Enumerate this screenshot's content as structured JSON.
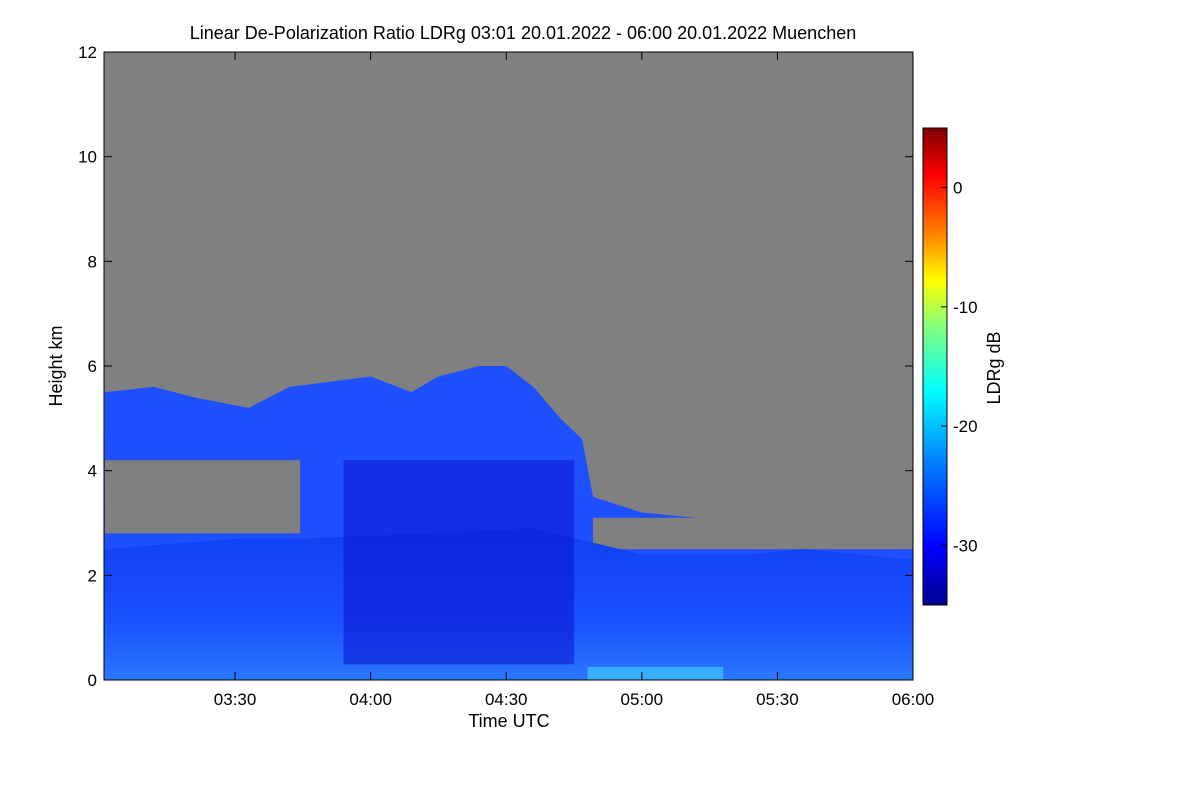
{
  "chart_data": {
    "type": "heatmap",
    "title": "Linear De-Polarization Ratio LDRg   03:01 20.01.2022 - 06:00 20.01.2022 Muenchen",
    "xlabel": "Time UTC",
    "ylabel": "Height km",
    "x_range_hours": [
      3.0167,
      6.0
    ],
    "ylim": [
      0,
      12
    ],
    "x_ticks": [
      {
        "label": "03:30",
        "value": 3.5
      },
      {
        "label": "04:00",
        "value": 4.0
      },
      {
        "label": "04:30",
        "value": 4.5
      },
      {
        "label": "05:00",
        "value": 5.0
      },
      {
        "label": "05:30",
        "value": 5.5
      },
      {
        "label": "06:00",
        "value": 6.0
      }
    ],
    "y_ticks": [
      {
        "label": "0",
        "value": 0
      },
      {
        "label": "2",
        "value": 2
      },
      {
        "label": "4",
        "value": 4
      },
      {
        "label": "6",
        "value": 6
      },
      {
        "label": "8",
        "value": 8
      },
      {
        "label": "10",
        "value": 10
      },
      {
        "label": "12",
        "value": 12
      }
    ],
    "colorbar": {
      "label": "LDRg dB",
      "range": [
        -35,
        5
      ],
      "ticks": [
        {
          "label": "0",
          "value": 0
        },
        {
          "label": "-10",
          "value": -10
        },
        {
          "label": "-20",
          "value": -20
        },
        {
          "label": "-30",
          "value": -30
        }
      ],
      "colormap": [
        "#00008f",
        "#0000ff",
        "#0080ff",
        "#00ffff",
        "#80ff80",
        "#ffff00",
        "#ff8000",
        "#ff0000",
        "#800000"
      ]
    },
    "no_signal_color": "#808080",
    "signal_color_low": "#0a14d2",
    "signal_color_mid": "#1e50ff",
    "cloud_top_km": [
      {
        "t": 3.02,
        "h": 5.5
      },
      {
        "t": 3.2,
        "h": 5.6
      },
      {
        "t": 3.35,
        "h": 5.4
      },
      {
        "t": 3.55,
        "h": 5.2
      },
      {
        "t": 3.7,
        "h": 5.6
      },
      {
        "t": 3.85,
        "h": 5.7
      },
      {
        "t": 4.0,
        "h": 5.8
      },
      {
        "t": 4.15,
        "h": 5.5
      },
      {
        "t": 4.25,
        "h": 5.8
      },
      {
        "t": 4.4,
        "h": 6.0
      },
      {
        "t": 4.5,
        "h": 6.0
      },
      {
        "t": 4.6,
        "h": 5.6
      },
      {
        "t": 4.7,
        "h": 5.0
      },
      {
        "t": 4.78,
        "h": 4.6
      },
      {
        "t": 4.82,
        "h": 3.5
      },
      {
        "t": 5.0,
        "h": 3.2
      },
      {
        "t": 5.2,
        "h": 3.1
      },
      {
        "t": 5.4,
        "h": 3.0
      },
      {
        "t": 5.6,
        "h": 3.0
      },
      {
        "t": 5.8,
        "h": 2.9
      },
      {
        "t": 6.0,
        "h": 2.8
      }
    ],
    "lower_layer_top_km": [
      {
        "t": 3.02,
        "h": 2.5
      },
      {
        "t": 3.5,
        "h": 2.7
      },
      {
        "t": 3.75,
        "h": 2.7
      },
      {
        "t": 4.2,
        "h": 2.8
      },
      {
        "t": 4.6,
        "h": 2.9
      },
      {
        "t": 5.0,
        "h": 2.4
      },
      {
        "t": 5.4,
        "h": 2.4
      },
      {
        "t": 5.6,
        "h": 2.5
      },
      {
        "t": 5.8,
        "h": 2.4
      },
      {
        "t": 6.0,
        "h": 2.3
      }
    ],
    "gap_layer_km": [
      {
        "t_start": 3.02,
        "t_end": 3.74,
        "h_bottom": 2.8,
        "h_top": 4.2
      },
      {
        "t_start": 4.82,
        "t_end": 6.0,
        "h_bottom": 2.5,
        "h_top": 3.1
      }
    ]
  }
}
